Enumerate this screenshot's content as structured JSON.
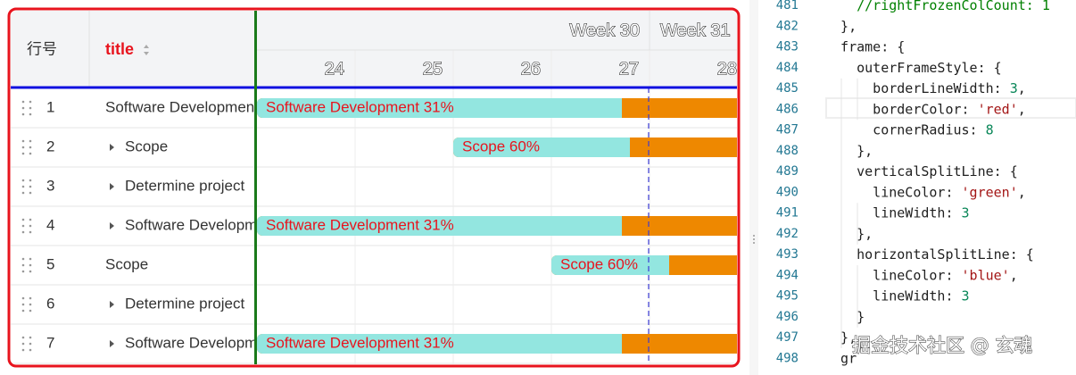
{
  "table": {
    "headers": [
      "行号",
      "title"
    ],
    "rows": [
      [
        "1",
        "Software Development"
      ],
      [
        "2",
        "Scope"
      ],
      [
        "3",
        "Determine project"
      ],
      [
        "4",
        "Software Development"
      ],
      [
        "5",
        "Scope"
      ],
      [
        "6",
        "Determine project"
      ],
      [
        "7",
        "Software Development"
      ]
    ]
  },
  "timeline": {
    "weeks": [
      "Week 30",
      "Week 31"
    ],
    "days": [
      "24",
      "25",
      "26",
      "27",
      "28"
    ],
    "bars": [
      "Software Development 31%",
      "Scope 60%",
      null,
      "Software Development 31%",
      "Scope 60%",
      null,
      "Software Development 31%"
    ]
  },
  "editor": {
    "lines": [
      {
        "number": "481",
        "text": "    //rightFrozenColCount: 1"
      },
      {
        "number": "482",
        "text": "  },"
      },
      {
        "number": "483",
        "text": "  frame: {"
      },
      {
        "number": "484",
        "text": "    outerFrameStyle: {"
      },
      {
        "number": "485",
        "text": "      borderLineWidth: 3,"
      },
      {
        "number": "486",
        "text": "      borderColor: 'red',"
      },
      {
        "number": "487",
        "text": "      cornerRadius: 8"
      },
      {
        "number": "488",
        "text": "    },"
      },
      {
        "number": "489",
        "text": "    verticalSplitLine: {"
      },
      {
        "number": "490",
        "text": "      lineColor: 'green',"
      },
      {
        "number": "491",
        "text": "      lineWidth: 3"
      },
      {
        "number": "492",
        "text": "    },"
      },
      {
        "number": "493",
        "text": "    horizontalSplitLine: {"
      },
      {
        "number": "494",
        "text": "      lineColor: 'blue',"
      },
      {
        "number": "495",
        "text": "      lineWidth: 3"
      },
      {
        "number": "496",
        "text": "    }"
      },
      {
        "number": "497",
        "text": "  },"
      },
      {
        "number": "498",
        "text": "  gr"
      }
    ],
    "watermark": "掘金技术社区 @ 玄魂"
  }
}
